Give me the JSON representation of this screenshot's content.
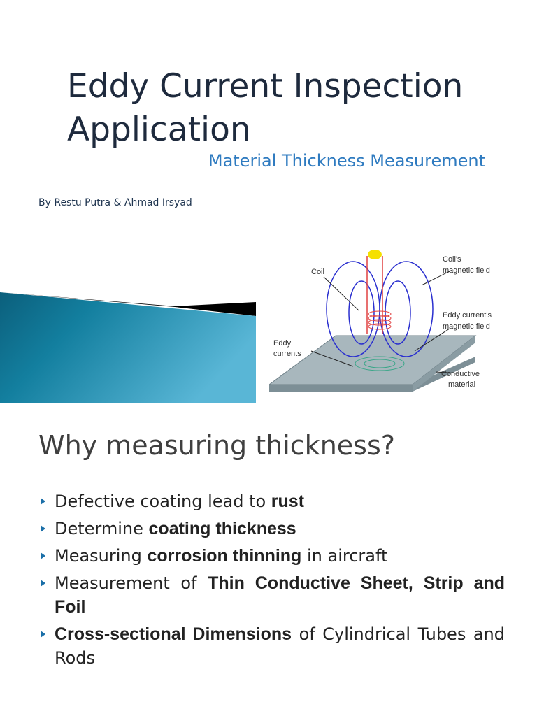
{
  "slide1": {
    "title": "Eddy Current Inspection Application",
    "subtitle": "Material Thickness Measurement",
    "byline": "By Restu Putra & Ahmad Irsyad",
    "diagram_labels": {
      "coil": "Coil",
      "coil_field_1": "Coil's",
      "coil_field_2": "magnetic field",
      "eddy_field_1": "Eddy current's",
      "eddy_field_2": "magnetic field",
      "eddy_currents_1": "Eddy",
      "eddy_currents_2": "currents",
      "conductive_1": "Conductive",
      "conductive_2": "material"
    },
    "colors": {
      "accent": "#2f7bc0",
      "shape": "#1a7fa0"
    }
  },
  "slide2": {
    "heading": "Why measuring thickness?",
    "bullets": [
      {
        "pre": "Defective coating lead to ",
        "bold": "rust",
        "post": ""
      },
      {
        "pre": "Determine ",
        "bold": "coating thickness",
        "post": ""
      },
      {
        "pre": "Measuring ",
        "bold": "corrosion thinning",
        "post": " in aircraft"
      },
      {
        "pre": "Measurement of ",
        "bold": "Thin Conductive Sheet, Strip and Foil",
        "post": ""
      },
      {
        "pre": "",
        "bold": "Cross-sectional Dimensions",
        "post": " of Cylindrical Tubes and Rods"
      }
    ]
  }
}
